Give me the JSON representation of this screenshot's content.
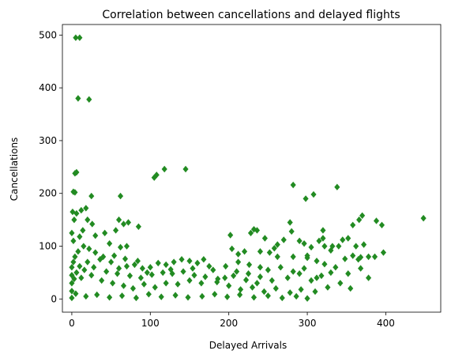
{
  "chart_data": {
    "type": "scatter",
    "title": "Correlation between cancellations and delayed flights",
    "xlabel": "Delayed Arrivals",
    "ylabel": "Cancellations",
    "xlim": [
      -12,
      470
    ],
    "ylim": [
      -25,
      520
    ],
    "xticks": [
      0,
      100,
      200,
      300,
      400
    ],
    "yticks": [
      0,
      100,
      200,
      300,
      400,
      500
    ],
    "marker": "diamond",
    "color": "#228B22",
    "grid": false,
    "series": [
      {
        "points": [
          [
            5,
            495
          ],
          [
            10,
            495
          ],
          [
            8,
            380
          ],
          [
            22,
            378
          ],
          [
            6,
            240
          ],
          [
            4,
            238
          ],
          [
            2,
            203
          ],
          [
            4,
            202
          ],
          [
            25,
            195
          ],
          [
            62,
            195
          ],
          [
            105,
            230
          ],
          [
            108,
            235
          ],
          [
            118,
            246
          ],
          [
            145,
            246
          ],
          [
            282,
            216
          ],
          [
            338,
            212
          ],
          [
            308,
            198
          ],
          [
            298,
            190
          ],
          [
            1,
            165
          ],
          [
            6,
            162
          ],
          [
            12,
            168
          ],
          [
            18,
            172
          ],
          [
            3,
            150
          ],
          [
            20,
            150
          ],
          [
            26,
            142
          ],
          [
            14,
            130
          ],
          [
            42,
            125
          ],
          [
            60,
            150
          ],
          [
            66,
            142
          ],
          [
            72,
            145
          ],
          [
            85,
            137
          ],
          [
            56,
            130
          ],
          [
            0,
            125
          ],
          [
            2,
            110
          ],
          [
            10,
            118
          ],
          [
            30,
            120
          ],
          [
            48,
            105
          ],
          [
            62,
            98
          ],
          [
            70,
            100
          ],
          [
            448,
            153
          ],
          [
            370,
            158
          ],
          [
            366,
            150
          ],
          [
            388,
            148
          ],
          [
            395,
            140
          ],
          [
            358,
            140
          ],
          [
            352,
            115
          ],
          [
            345,
            112
          ],
          [
            362,
            100
          ],
          [
            372,
            103
          ],
          [
            378,
            80
          ],
          [
            397,
            88
          ],
          [
            386,
            80
          ],
          [
            368,
            79
          ],
          [
            358,
            82
          ],
          [
            340,
            100
          ],
          [
            332,
            100
          ],
          [
            320,
            130
          ],
          [
            320,
            115
          ],
          [
            315,
            110
          ],
          [
            322,
            100
          ],
          [
            330,
            92
          ],
          [
            305,
            98
          ],
          [
            300,
            78
          ],
          [
            290,
            110
          ],
          [
            296,
            105
          ],
          [
            278,
            145
          ],
          [
            280,
            128
          ],
          [
            270,
            112
          ],
          [
            262,
            103
          ],
          [
            258,
            96
          ],
          [
            252,
            88
          ],
          [
            240,
            90
          ],
          [
            232,
            132
          ],
          [
            236,
            130
          ],
          [
            228,
            125
          ],
          [
            220,
            90
          ],
          [
            202,
            121
          ],
          [
            204,
            95
          ],
          [
            212,
            85
          ],
          [
            246,
            115
          ],
          [
            262,
            80
          ],
          [
            282,
            80
          ],
          [
            300,
            82
          ],
          [
            312,
            72
          ],
          [
            322,
            66
          ],
          [
            336,
            60
          ],
          [
            348,
            76
          ],
          [
            365,
            75
          ],
          [
            368,
            58
          ],
          [
            352,
            48
          ],
          [
            330,
            50
          ],
          [
            318,
            44
          ],
          [
            305,
            35
          ],
          [
            290,
            48
          ],
          [
            275,
            40
          ],
          [
            255,
            35
          ],
          [
            240,
            42
          ],
          [
            225,
            48
          ],
          [
            210,
            52
          ],
          [
            195,
            40
          ],
          [
            180,
            55
          ],
          [
            175,
            62
          ],
          [
            160,
            68
          ],
          [
            150,
            72
          ],
          [
            140,
            75
          ],
          [
            130,
            70
          ],
          [
            120,
            65
          ],
          [
            110,
            68
          ],
          [
            100,
            60
          ],
          [
            90,
            58
          ],
          [
            80,
            65
          ],
          [
            70,
            62
          ],
          [
            60,
            58
          ],
          [
            50,
            70
          ],
          [
            40,
            80
          ],
          [
            30,
            88
          ],
          [
            22,
            95
          ],
          [
            15,
            100
          ],
          [
            8,
            90
          ],
          [
            4,
            80
          ],
          [
            2,
            70
          ],
          [
            0,
            60
          ],
          [
            0,
            45
          ],
          [
            0,
            30
          ],
          [
            0,
            15
          ],
          [
            0,
            2
          ],
          [
            12,
            40
          ],
          [
            25,
            45
          ],
          [
            38,
            35
          ],
          [
            52,
            30
          ],
          [
            66,
            25
          ],
          [
            78,
            20
          ],
          [
            92,
            28
          ],
          [
            106,
            22
          ],
          [
            120,
            30
          ],
          [
            135,
            28
          ],
          [
            150,
            35
          ],
          [
            165,
            30
          ],
          [
            185,
            32
          ],
          [
            200,
            25
          ],
          [
            215,
            18
          ],
          [
            230,
            22
          ],
          [
            245,
            14
          ],
          [
            260,
            20
          ],
          [
            278,
            12
          ],
          [
            292,
            18
          ],
          [
            310,
            14
          ],
          [
            326,
            22
          ],
          [
            342,
            30
          ],
          [
            355,
            20
          ],
          [
            378,
            40
          ],
          [
            5,
            10
          ],
          [
            18,
            5
          ],
          [
            32,
            8
          ],
          [
            48,
            3
          ],
          [
            64,
            6
          ],
          [
            82,
            2
          ],
          [
            98,
            9
          ],
          [
            114,
            4
          ],
          [
            132,
            7
          ],
          [
            148,
            3
          ],
          [
            166,
            5
          ],
          [
            182,
            9
          ],
          [
            198,
            4
          ],
          [
            214,
            8
          ],
          [
            232,
            3
          ],
          [
            250,
            6
          ],
          [
            268,
            2
          ],
          [
            286,
            5
          ],
          [
            300,
            1
          ],
          [
            16,
            55
          ],
          [
            28,
            60
          ],
          [
            44,
            52
          ],
          [
            58,
            48
          ],
          [
            74,
            44
          ],
          [
            88,
            40
          ],
          [
            102,
            46
          ],
          [
            116,
            50
          ],
          [
            128,
            48
          ],
          [
            142,
            52
          ],
          [
            156,
            45
          ],
          [
            170,
            42
          ],
          [
            186,
            38
          ],
          [
            206,
            44
          ],
          [
            222,
            36
          ],
          [
            236,
            30
          ],
          [
            250,
            55
          ],
          [
            266,
            60
          ],
          [
            282,
            52
          ],
          [
            296,
            58
          ],
          [
            312,
            40
          ],
          [
            240,
            60
          ],
          [
            226,
            65
          ],
          [
            212,
            70
          ],
          [
            196,
            62
          ],
          [
            168,
            75
          ],
          [
            154,
            58
          ],
          [
            126,
            56
          ],
          [
            96,
            50
          ],
          [
            84,
            72
          ],
          [
            68,
            76
          ],
          [
            54,
            82
          ],
          [
            36,
            75
          ],
          [
            20,
            70
          ],
          [
            10,
            62
          ],
          [
            6,
            50
          ],
          [
            3,
            38
          ]
        ]
      }
    ]
  }
}
